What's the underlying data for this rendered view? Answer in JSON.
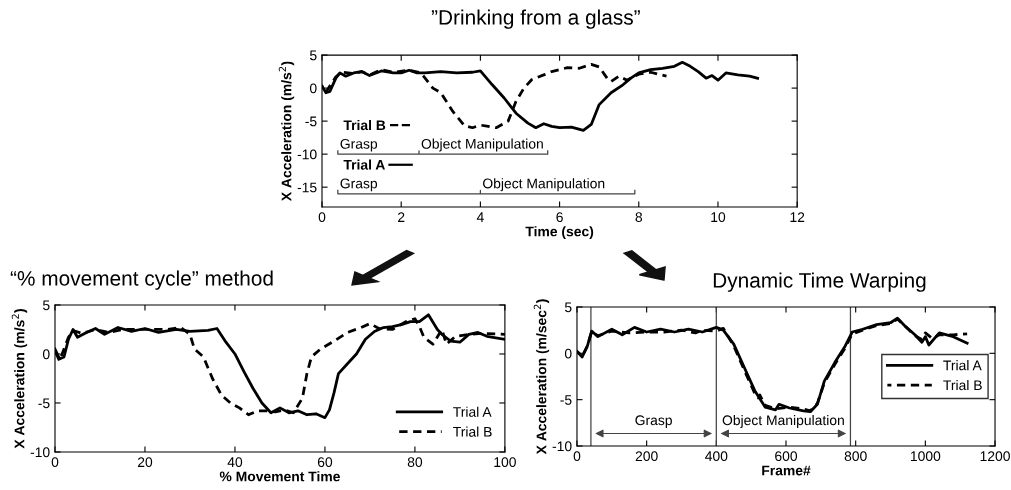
{
  "chart_data": [
    {
      "type": "line",
      "title": "”Drinking from a glass”",
      "xlabel": "Time (sec)",
      "ylabel": "X Acceleration (m/s$^{2}$)",
      "xlim": [
        0,
        12
      ],
      "xticks": [
        0,
        2,
        4,
        6,
        8,
        10,
        12
      ],
      "ylim": [
        -18,
        5
      ],
      "yticks": [
        -15,
        -10,
        -5,
        0,
        5
      ],
      "grid": false,
      "legend": "left",
      "annotations": [
        {
          "text": "Grasp",
          "x": 0.45,
          "y": -9.6
        },
        {
          "text": "Object Manipulation",
          "x": 2.5,
          "y": -9.6
        },
        {
          "text": "Grasp",
          "x": 0.45,
          "y": -15.6
        },
        {
          "text": "Object Manipulation",
          "x": 4.05,
          "y": -15.6
        }
      ],
      "series": [
        {
          "name": "Trial B",
          "color": "#000000",
          "line_style": "dashed",
          "x": [
            0,
            0.1,
            0.35,
            0.5,
            0.8,
            1.0,
            1.2,
            1.5,
            1.8,
            2.2,
            2.5,
            2.8,
            3.0,
            3.3,
            3.6,
            3.8,
            4.0,
            4.2,
            4.4,
            4.7,
            4.9,
            5.1,
            5.3,
            5.6,
            5.8,
            6.2,
            6.5,
            6.8,
            7.0,
            7.2,
            7.3,
            7.5,
            7.7,
            8.0,
            8.3,
            8.7
          ],
          "values": [
            0.3,
            -0.6,
            1.7,
            2.4,
            2.2,
            2.5,
            2.0,
            2.8,
            2.4,
            2.7,
            2.3,
            0,
            -0.7,
            -3.5,
            -5.7,
            -6.0,
            -5.6,
            -5.8,
            -6.0,
            -5,
            -2,
            0,
            1.3,
            2.0,
            2.5,
            3.1,
            3.0,
            3.6,
            3.2,
            1.5,
            1.0,
            1.8,
            1.2,
            2.1,
            2.4,
            1.8
          ]
        },
        {
          "name": "Trial A",
          "color": "#000000",
          "line_style": "solid",
          "x": [
            0,
            0.1,
            0.2,
            0.35,
            0.45,
            0.6,
            0.8,
            1.0,
            1.2,
            1.5,
            1.8,
            2.0,
            2.2,
            2.4,
            2.6,
            3.0,
            3.4,
            3.8,
            4.0,
            4.3,
            4.6,
            4.9,
            5.2,
            5.4,
            5.6,
            5.8,
            6.0,
            6.3,
            6.6,
            6.8,
            7.0,
            7.3,
            7.6,
            7.8,
            8.0,
            8.3,
            8.6,
            8.9,
            9.1,
            9.3,
            9.5,
            9.7,
            9.85,
            10.0,
            10.2,
            10.5,
            10.8,
            11.0
          ],
          "values": [
            0.3,
            -0.7,
            -0.5,
            1.5,
            2.3,
            1.8,
            2.3,
            2.5,
            1.9,
            2.6,
            2.3,
            2.3,
            2.7,
            2.3,
            2.3,
            2.5,
            2.3,
            2.4,
            2.6,
            0.5,
            -1.5,
            -3.8,
            -5.3,
            -6,
            -5.4,
            -5.8,
            -6.0,
            -5.9,
            -6.4,
            -5.5,
            -2.5,
            -0.7,
            0.5,
            1.5,
            2.3,
            2.8,
            3.0,
            3.3,
            3.9,
            3.3,
            2.5,
            1.5,
            1.9,
            1.2,
            2.3,
            2.0,
            1.8,
            1.5
          ]
        },
        {
          "color": "#444444",
          "x": [
            0.4,
            0.4,
            2.45,
            2.45,
            2.45,
            5.7,
            5.7
          ],
          "values": [
            -9.5,
            -10,
            -10,
            -9.5,
            -10,
            -10,
            -9.5
          ]
        },
        {
          "color": "#444444",
          "x": [
            0.4,
            0.4,
            4.0,
            4.0,
            4.0,
            7.9,
            7.9
          ],
          "values": [
            -15.5,
            -16,
            -16,
            -15.5,
            -16,
            -16,
            -15.5
          ]
        }
      ]
    },
    {
      "type": "line",
      "title": "“% movement cycle” method",
      "xlabel": "% Movement Time",
      "ylabel": "X Acceleration (m/s$^{2}$)",
      "xlim": [
        0,
        100
      ],
      "xticks": [
        0,
        20,
        40,
        60,
        80,
        100
      ],
      "ylim": [
        -10,
        5
      ],
      "yticks": [
        -10,
        -5,
        0,
        5
      ],
      "grid": false,
      "legend": "bottom right",
      "series": [
        {
          "name": "Trial A",
          "color": "#000000",
          "line_style": "solid",
          "x": [
            0,
            1,
            2,
            3,
            4,
            5,
            7,
            9,
            11,
            14,
            17,
            20,
            23,
            27,
            30,
            34,
            36,
            38,
            40,
            42,
            44,
            46,
            48,
            50,
            52,
            54,
            56,
            58,
            60,
            61,
            62,
            63,
            65,
            67,
            69,
            71,
            73,
            75,
            77,
            79,
            81,
            83,
            85,
            86,
            88,
            90,
            92,
            94,
            96,
            100
          ],
          "values": [
            0.5,
            -0.5,
            -0.3,
            1.5,
            2.5,
            1.7,
            2.2,
            2.6,
            2.0,
            2.7,
            2.3,
            2.6,
            2.2,
            2.5,
            2.3,
            2.4,
            2.6,
            1.2,
            0,
            -1.8,
            -3.5,
            -5,
            -6,
            -5.5,
            -6,
            -5.8,
            -6.2,
            -6.1,
            -6.5,
            -5.7,
            -4,
            -2,
            -1,
            0,
            1.5,
            2.3,
            2.7,
            2.8,
            3.0,
            3.3,
            3.3,
            4.0,
            2.5,
            2.0,
            1.3,
            1.2,
            2.0,
            2.2,
            1.8,
            1.5
          ]
        },
        {
          "name": "Trial B",
          "color": "#000000",
          "line_style": "dashed",
          "x": [
            0,
            1,
            3,
            4,
            6,
            9,
            12,
            15,
            20,
            25,
            28,
            30,
            31,
            33,
            35,
            37,
            39,
            41,
            43,
            45,
            47,
            49,
            51,
            53,
            55,
            56,
            57,
            59,
            62,
            65,
            68,
            70,
            72,
            75,
            78,
            80,
            81,
            82,
            84,
            86,
            87,
            89,
            92,
            95,
            100
          ],
          "values": [
            0.3,
            -0.7,
            1.7,
            2.4,
            2.1,
            2.5,
            2.2,
            2.5,
            2.5,
            2.5,
            2.7,
            2.0,
            0.5,
            -0.3,
            -2.5,
            -4.2,
            -5,
            -5.5,
            -6.2,
            -5.8,
            -5.8,
            -5.9,
            -5.7,
            -6,
            -4.5,
            -2,
            -0.3,
            0.5,
            1.3,
            2.2,
            2.7,
            3.1,
            2.6,
            2.5,
            3.3,
            3.6,
            2.8,
            1.7,
            1.0,
            2.5,
            1.0,
            1.8,
            2.0,
            2.1,
            2.0
          ]
        }
      ]
    },
    {
      "type": "line",
      "title": "Dynamic Time Warping",
      "xlabel": "Frame#",
      "ylabel": "X Acceleration (m/sec$^{2}$)",
      "xlim": [
        0,
        1200
      ],
      "xticks": [
        0,
        200,
        400,
        600,
        800,
        1000,
        1200
      ],
      "ylim": [
        -10,
        5
      ],
      "yticks": [
        -10,
        -5,
        0,
        5
      ],
      "grid": false,
      "legend": "right",
      "annotations": [
        "Grasp",
        "Object Manipulation"
      ],
      "ref_lines": [
        {
          "axis": "x",
          "value": 40,
          "label": null,
          "color": "#444444"
        },
        {
          "axis": "x",
          "value": 400,
          "label": null,
          "color": "#444444"
        },
        {
          "axis": "x",
          "value": 785,
          "label": null,
          "color": "#444444"
        }
      ],
      "series": [
        {
          "name": "Trial A",
          "color": "#000000",
          "line_style": "solid",
          "x": [
            0,
            15,
            30,
            42,
            60,
            100,
            130,
            165,
            200,
            240,
            280,
            320,
            360,
            400,
            420,
            450,
            480,
            510,
            540,
            570,
            580,
            610,
            650,
            670,
            690,
            710,
            740,
            770,
            790,
            820,
            860,
            900,
            920,
            940,
            970,
            990,
            1000,
            1010,
            1040,
            1080,
            1120
          ],
          "values": [
            0.2,
            -0.4,
            0.8,
            2.4,
            1.8,
            2.6,
            2.0,
            2.8,
            2.3,
            2.6,
            2.3,
            2.6,
            2.3,
            2.8,
            2.5,
            1.0,
            -1.5,
            -4,
            -5.8,
            -6.1,
            -5.5,
            -5.9,
            -6.2,
            -6.3,
            -5.5,
            -3,
            -1,
            0.8,
            2.3,
            2.6,
            3.1,
            3.3,
            3.8,
            3.0,
            2.0,
            1.2,
            1.8,
            0.9,
            2.2,
            1.8,
            1.1
          ]
        },
        {
          "name": "Trial B",
          "color": "#000000",
          "line_style": "dashed",
          "x": [
            0,
            15,
            30,
            42,
            60,
            100,
            150,
            200,
            250,
            300,
            340,
            360,
            400,
            420,
            450,
            480,
            510,
            520,
            525,
            540,
            570,
            610,
            650,
            670,
            690,
            710,
            740,
            770,
            790,
            820,
            860,
            900,
            920,
            940,
            970,
            990,
            1000,
            1020,
            1040,
            1080,
            1120
          ],
          "values": [
            0.2,
            -0.3,
            0.8,
            2.3,
            1.9,
            2.4,
            2.2,
            2.3,
            2.3,
            2.5,
            2.2,
            2.5,
            2.4,
            2.7,
            0.8,
            -1.8,
            -4.3,
            -4.8,
            -4.5,
            -5.6,
            -6.0,
            -5.8,
            -6.0,
            -6.2,
            -5.4,
            -3.2,
            -1.2,
            0.6,
            2.1,
            2.5,
            3.0,
            3.2,
            3.7,
            3.0,
            1.9,
            1.5,
            2.2,
            1.6,
            2.0,
            2.0,
            2.1
          ]
        }
      ]
    }
  ]
}
